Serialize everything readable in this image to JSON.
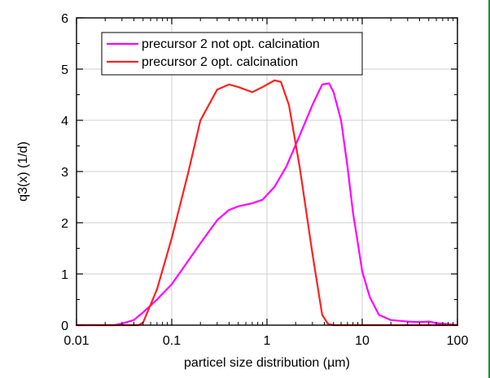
{
  "chart_data": {
    "type": "line",
    "title": "",
    "xlabel": "particel size distribution (µm)",
    "ylabel": "q3(x) (1/d)",
    "x_scale": "log",
    "xlim": [
      0.01,
      100
    ],
    "ylim": [
      0,
      6
    ],
    "x_ticks": [
      0.01,
      0.1,
      1,
      10,
      100
    ],
    "x_tick_labels": [
      "0.01",
      "0.1",
      "1",
      "10",
      "100"
    ],
    "y_ticks": [
      0,
      1,
      2,
      3,
      4,
      5,
      6
    ],
    "y_tick_labels": [
      "0",
      "1",
      "2",
      "3",
      "4",
      "5",
      "6"
    ],
    "grid": true,
    "legend_position": "top-left",
    "series": [
      {
        "name": "precursor 2 not opt. calcination",
        "color": "#ff00ff",
        "x": [
          0.01,
          0.025,
          0.03,
          0.04,
          0.05,
          0.07,
          0.1,
          0.13,
          0.2,
          0.3,
          0.4,
          0.5,
          0.7,
          0.9,
          1.2,
          1.6,
          2.2,
          3.0,
          3.8,
          4.5,
          5.0,
          6.0,
          7.0,
          8.0,
          9.0,
          10.0,
          12.0,
          15.0,
          20.0,
          30.0,
          40.0,
          50.0,
          60.0,
          80.0,
          100.0
        ],
        "y": [
          0,
          0,
          0.03,
          0.1,
          0.25,
          0.5,
          0.8,
          1.1,
          1.6,
          2.05,
          2.25,
          2.32,
          2.38,
          2.45,
          2.7,
          3.1,
          3.7,
          4.3,
          4.7,
          4.72,
          4.55,
          4.0,
          3.1,
          2.2,
          1.6,
          1.05,
          0.55,
          0.2,
          0.1,
          0.07,
          0.06,
          0.07,
          0.04,
          0.02,
          0
        ]
      },
      {
        "name": "precursor 2 opt. calcination",
        "color": "#ff2020",
        "x": [
          0.01,
          0.045,
          0.05,
          0.07,
          0.1,
          0.15,
          0.2,
          0.3,
          0.4,
          0.5,
          0.7,
          0.9,
          1.2,
          1.4,
          1.7,
          2.2,
          3.0,
          3.8,
          4.4,
          5.0,
          10.0,
          100.0
        ],
        "y": [
          0,
          0,
          0.05,
          0.7,
          1.7,
          3.0,
          4.0,
          4.6,
          4.7,
          4.65,
          4.55,
          4.65,
          4.78,
          4.75,
          4.3,
          3.1,
          1.4,
          0.2,
          0.02,
          0,
          0,
          0
        ]
      }
    ]
  }
}
